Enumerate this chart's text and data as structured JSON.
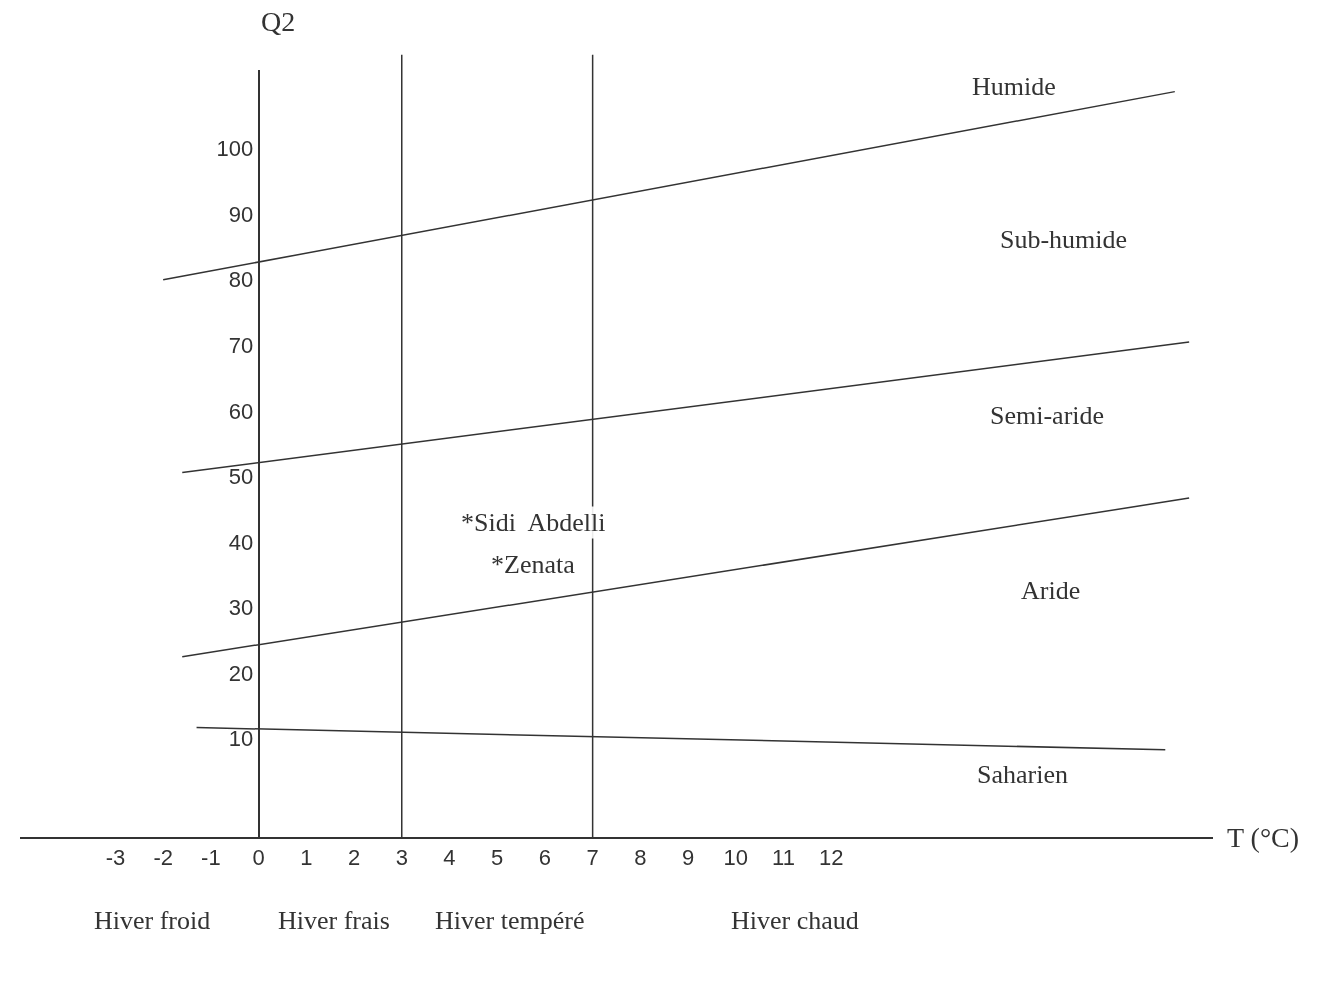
{
  "chart_data": {
    "type": "line",
    "xlabel": "T (°C)",
    "ylabel": "Q2",
    "xlim": [
      -5,
      20
    ],
    "ylim": [
      -5,
      112
    ],
    "xticks": [
      -3,
      -2,
      -1,
      0,
      1,
      2,
      3,
      4,
      5,
      6,
      7,
      8,
      9,
      10,
      11,
      12
    ],
    "yticks": [
      10,
      20,
      30,
      40,
      50,
      60,
      70,
      80,
      90,
      100
    ],
    "grid": false,
    "marker": "none",
    "line_style": "solid",
    "series": [
      {
        "color": "#333333",
        "x": [
          -2,
          19.2
        ],
        "values": [
          80,
          108.7
        ]
      },
      {
        "color": "#333333",
        "x": [
          -1.6,
          19.5
        ],
        "values": [
          50.6,
          70.5
        ]
      },
      {
        "color": "#333333",
        "x": [
          -1.6,
          19.5
        ],
        "values": [
          22.5,
          46.7
        ]
      },
      {
        "color": "#333333",
        "x": [
          -1.3,
          19
        ],
        "values": [
          11.7,
          8.3
        ]
      }
    ],
    "ref_lines": [
      {
        "axis": "x",
        "value": 3,
        "color": "#333333"
      },
      {
        "axis": "x",
        "value": 7,
        "color": "#333333"
      }
    ],
    "annotations": [
      "Humide",
      "Sub-humide",
      "Semi-aride",
      "Aride",
      "Saharien",
      "*Sidi  Abdelli",
      "*Zenata",
      "Hiver froid",
      "Hiver frais",
      "Hiver tempéré",
      "Hiver chaud"
    ]
  }
}
